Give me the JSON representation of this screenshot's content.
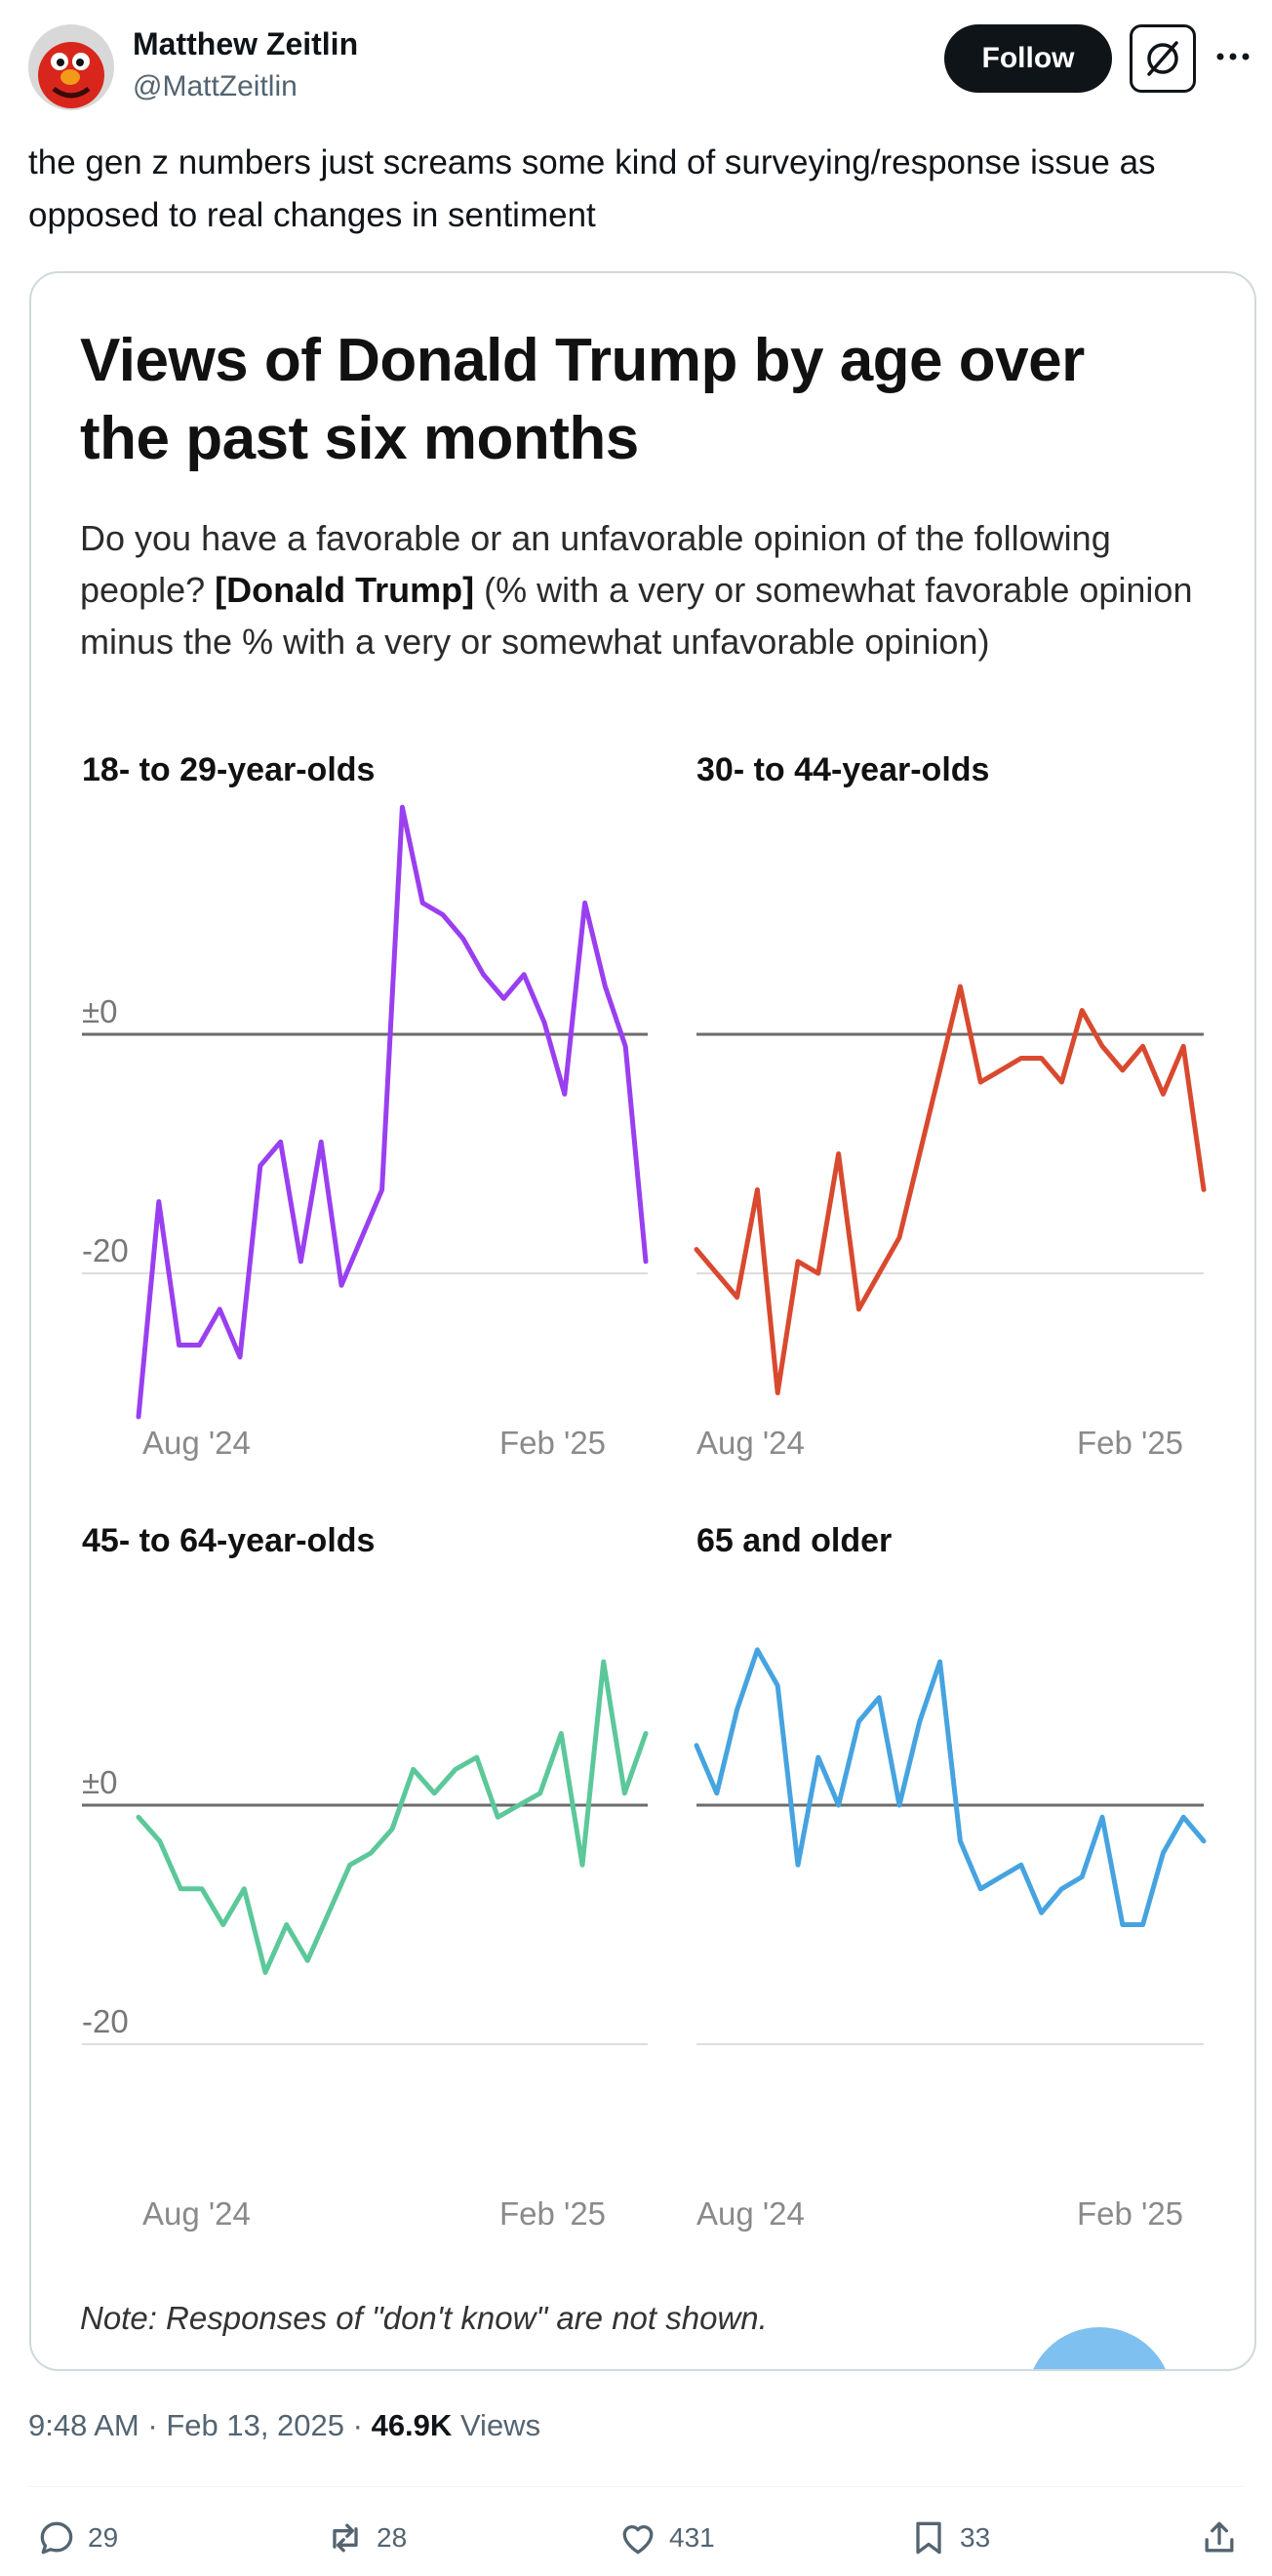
{
  "tweet": {
    "author_name": "Matthew Zeitlin",
    "author_handle": "@MattZeitlin",
    "follow_label": "Follow",
    "text": "the gen z numbers just screams some kind of surveying/response issue as opposed to real changes in sentiment",
    "time": "9:48 AM",
    "date": "Feb 13, 2025",
    "views_count": "46.9K",
    "views_label": "Views",
    "replies": "29",
    "reposts": "28",
    "likes": "431",
    "bookmarks": "33"
  },
  "image": {
    "title": "Views of Donald Trump by age over the past six months",
    "subtitle_pre": "Do you have a favorable or an unfavorable opinion of the following people? ",
    "subtitle_bold": "[Donald Trump]",
    "subtitle_post": " (% with a very or somewhat favorable opinion minus the % with a very or somewhat unfavorable opinion)",
    "note": "Note: Responses of \"don't know\" are not shown."
  },
  "colors": {
    "purple": "#9a3ff0",
    "red": "#d9492f",
    "green": "#5cc89a",
    "blue": "#46a3e0",
    "zero_line": "#6b6b6b",
    "grid": "#dddddd"
  },
  "chart_data": [
    {
      "type": "line",
      "title": "18- to 29-year-olds",
      "x_tick_labels": [
        "Aug '24",
        "Feb '25"
      ],
      "y_tick_labels": [
        "±0",
        "-20"
      ],
      "ylim": [
        -32,
        19
      ],
      "color": "#9a3ff0",
      "values": [
        -32,
        -14,
        -26,
        -26,
        -23,
        -27,
        -11,
        -9,
        -19,
        -9,
        -21,
        -17,
        -13,
        19,
        11,
        10,
        8,
        5,
        3,
        5,
        1,
        -5,
        11,
        4,
        -1,
        -19
      ]
    },
    {
      "type": "line",
      "title": "30- to 44-year-olds",
      "x_tick_labels": [
        "Aug '24",
        "Feb '25"
      ],
      "y_tick_labels": [],
      "ylim": [
        -30,
        4
      ],
      "color": "#d9492f",
      "values": [
        -18,
        -20,
        -22,
        -13,
        -30,
        -19,
        -20,
        -10,
        -23,
        -20,
        -17,
        -10,
        -3,
        4,
        -4,
        -3,
        -2,
        -2,
        -4,
        2,
        -1,
        -3,
        -1,
        -5,
        -1,
        -13
      ]
    },
    {
      "type": "line",
      "title": "45- to 64-year-olds",
      "x_tick_labels": [
        "Aug '24",
        "Feb '25"
      ],
      "y_tick_labels": [
        "±0",
        "-20"
      ],
      "ylim": [
        -14,
        12
      ],
      "color": "#5cc89a",
      "values": [
        -1,
        -3,
        -7,
        -7,
        -10,
        -7,
        -14,
        -10,
        -13,
        -9,
        -5,
        -4,
        -2,
        3,
        1,
        3,
        4,
        -1,
        0,
        1,
        6,
        -5,
        12,
        1,
        6
      ]
    },
    {
      "type": "line",
      "title": "65 and older",
      "x_tick_labels": [
        "Aug '24",
        "Feb '25"
      ],
      "y_tick_labels": [],
      "ylim": [
        -11,
        13
      ],
      "color": "#46a3e0",
      "values": [
        5,
        1,
        8,
        13,
        10,
        -5,
        4,
        0,
        7,
        9,
        0,
        7,
        12,
        -3,
        -7,
        -6,
        -5,
        -9,
        -7,
        -6,
        -1,
        -10,
        -10,
        -4,
        -1,
        -3
      ]
    }
  ]
}
